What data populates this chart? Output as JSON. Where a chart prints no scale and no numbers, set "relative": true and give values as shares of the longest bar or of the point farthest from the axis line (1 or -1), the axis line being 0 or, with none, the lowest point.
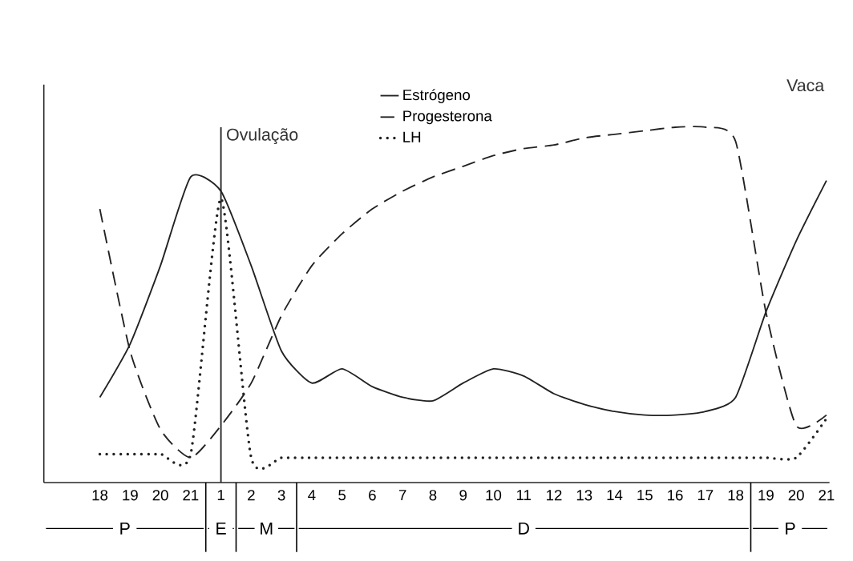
{
  "chart_data": {
    "type": "line",
    "relative": true,
    "tick_labels": "x",
    "legend": "top",
    "marker": "none",
    "categories": [
      "18",
      "19",
      "20",
      "21",
      "1",
      "2",
      "3",
      "4",
      "5",
      "6",
      "7",
      "8",
      "9",
      "10",
      "11",
      "12",
      "13",
      "14",
      "15",
      "16",
      "17",
      "18",
      "19",
      "20",
      "21"
    ],
    "series": [
      {
        "name": "Estrógeno",
        "color": "#222222",
        "line_style": "solid",
        "values": [
          0.24,
          0.39,
          0.61,
          0.86,
          0.82,
          0.61,
          0.37,
          0.28,
          0.32,
          0.27,
          0.24,
          0.23,
          0.28,
          0.32,
          0.3,
          0.25,
          0.22,
          0.2,
          0.19,
          0.19,
          0.2,
          0.24,
          0.48,
          0.68,
          0.85
        ]
      },
      {
        "name": "Progesterona",
        "color": "#222222",
        "line_style": "dashed",
        "values": [
          0.77,
          0.37,
          0.15,
          0.07,
          0.16,
          0.28,
          0.47,
          0.61,
          0.7,
          0.77,
          0.82,
          0.86,
          0.89,
          0.92,
          0.94,
          0.95,
          0.97,
          0.98,
          0.99,
          1.0,
          1.0,
          0.96,
          0.48,
          0.16,
          0.19
        ]
      },
      {
        "name": "LH",
        "color": "#222222",
        "line_style": "dotted",
        "values": [
          0.08,
          0.08,
          0.08,
          0.08,
          0.8,
          0.07,
          0.07,
          0.07,
          0.07,
          0.07,
          0.07,
          0.07,
          0.07,
          0.07,
          0.07,
          0.07,
          0.07,
          0.07,
          0.07,
          0.07,
          0.07,
          0.07,
          0.07,
          0.07,
          0.18
        ]
      }
    ],
    "ref_lines": [
      {
        "axis": "x",
        "value": "1",
        "label": "Ovulação"
      }
    ],
    "annotations": [
      "Vaca",
      "P",
      "E",
      "M",
      "D",
      "P"
    ]
  }
}
